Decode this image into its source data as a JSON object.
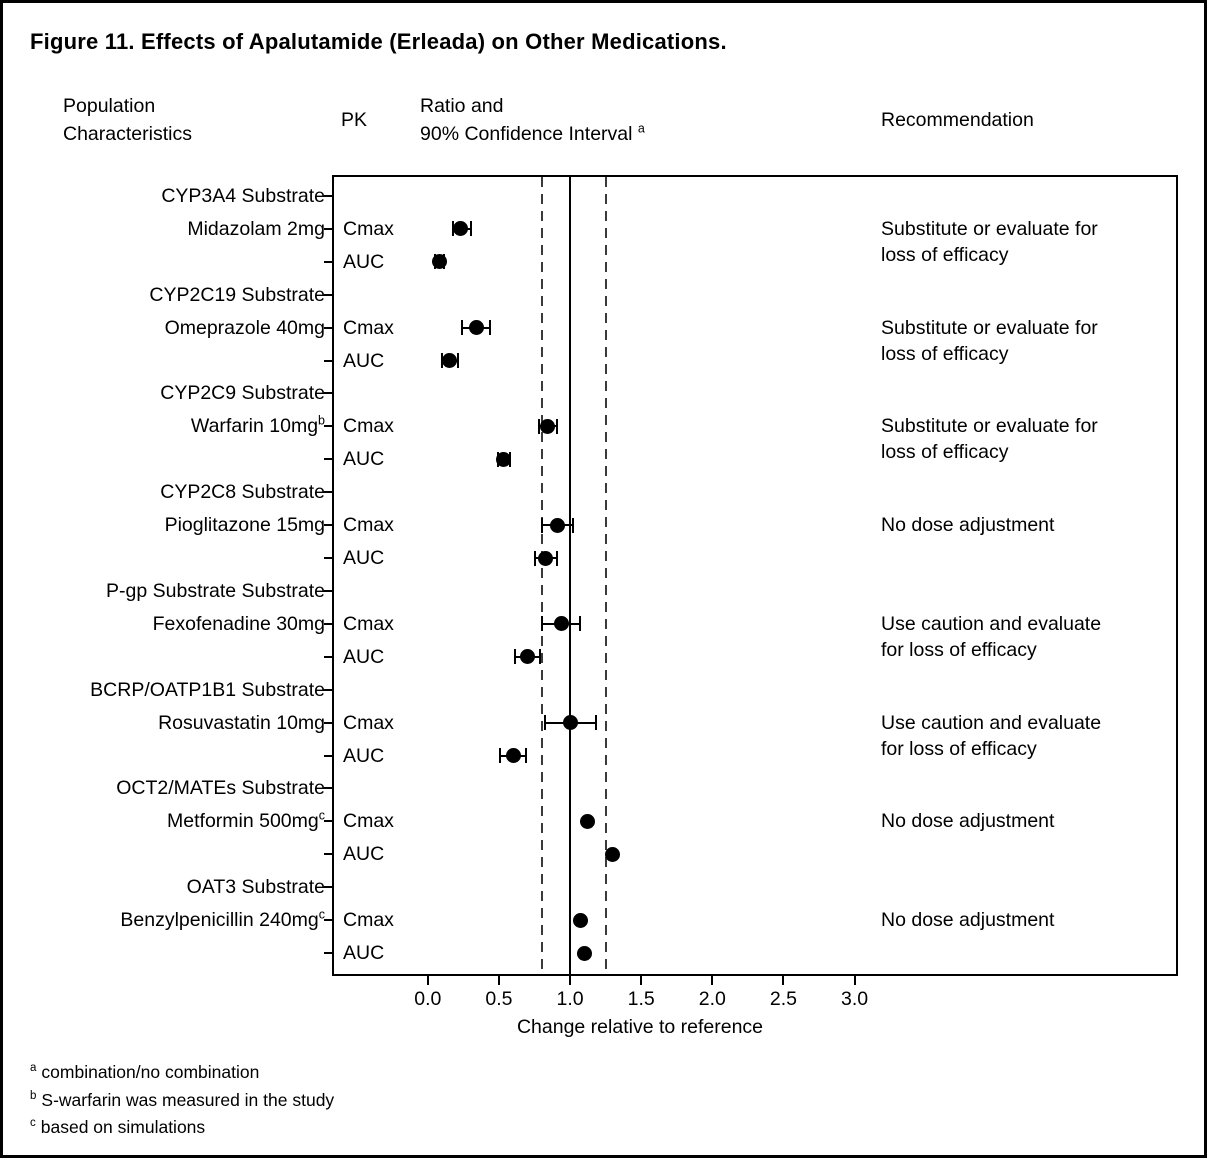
{
  "figure": {
    "columns": {
      "population_line1": "Population",
      "population_line2": "Characteristics",
      "pk": "PK",
      "ratio_line1": "Ratio and",
      "ratio_line2": "90% Confidence Interval",
      "ratio_sup": "a",
      "recommendation": "Recommendation"
    },
    "footnotes": [
      {
        "marker": "a",
        "text": "combination/no combination"
      },
      {
        "marker": "b",
        "text": "S-warfarin was measured in the study"
      },
      {
        "marker": "c",
        "text": "based on simulations"
      }
    ]
  },
  "colors": {
    "ink": "#000000",
    "dashed_reference": "#3a3a3a",
    "background": "#ffffff"
  },
  "chart_data": {
    "type": "scatter",
    "subtype": "forest-plot",
    "title": "Figure 11. Effects of Apalutamide (Erleada) on Other Medications.",
    "xlabel": "Change relative to reference",
    "x_ticks": [
      0.0,
      0.5,
      1.0,
      1.5,
      2.0,
      2.5,
      3.0
    ],
    "xlim": [
      -0.66,
      5.26
    ],
    "grid": false,
    "ref_lines": [
      {
        "x": 1.0,
        "style": "solid"
      },
      {
        "x": 0.8,
        "style": "dashed"
      },
      {
        "x": 1.25,
        "style": "dashed"
      }
    ],
    "rows": [
      {
        "kind": "category",
        "label": "CYP3A4 Substrate"
      },
      {
        "kind": "data",
        "label": "Midazolam 2mg",
        "pk": "Cmax",
        "value": 0.23,
        "lo": 0.18,
        "hi": 0.3,
        "rec_lines": [
          "Substitute or evaluate for",
          "loss of efficacy"
        ]
      },
      {
        "kind": "data",
        "label": "",
        "pk": "AUC",
        "value": 0.08,
        "lo": 0.05,
        "hi": 0.11
      },
      {
        "kind": "category",
        "label": "CYP2C19 Substrate"
      },
      {
        "kind": "data",
        "label": "Omeprazole 40mg",
        "pk": "Cmax",
        "value": 0.34,
        "lo": 0.24,
        "hi": 0.44,
        "rec_lines": [
          "Substitute or evaluate for",
          "loss of efficacy"
        ]
      },
      {
        "kind": "data",
        "label": "",
        "pk": "AUC",
        "value": 0.15,
        "lo": 0.1,
        "hi": 0.21
      },
      {
        "kind": "category",
        "label": "CYP2C9 Substrate"
      },
      {
        "kind": "data",
        "label": "Warfarin 10mg",
        "label_sup": "b",
        "pk": "Cmax",
        "value": 0.84,
        "lo": 0.78,
        "hi": 0.91,
        "rec_lines": [
          "Substitute or evaluate for",
          "loss of efficacy"
        ]
      },
      {
        "kind": "data",
        "label": "",
        "pk": "AUC",
        "value": 0.53,
        "lo": 0.49,
        "hi": 0.58
      },
      {
        "kind": "category",
        "label": "CYP2C8 Substrate"
      },
      {
        "kind": "data",
        "label": "Pioglitazone 15mg",
        "pk": "Cmax",
        "value": 0.91,
        "lo": 0.8,
        "hi": 1.02,
        "rec_lines": [
          "No dose adjustment"
        ]
      },
      {
        "kind": "data",
        "label": "",
        "pk": "AUC",
        "value": 0.83,
        "lo": 0.75,
        "hi": 0.91
      },
      {
        "kind": "category",
        "label": "P-gp Substrate Substrate"
      },
      {
        "kind": "data",
        "label": "Fexofenadine 30mg",
        "pk": "Cmax",
        "value": 0.94,
        "lo": 0.8,
        "hi": 1.07,
        "rec_lines": [
          "Use caution and evaluate",
          "for loss of efficacy"
        ]
      },
      {
        "kind": "data",
        "label": "",
        "pk": "AUC",
        "value": 0.7,
        "lo": 0.61,
        "hi": 0.79
      },
      {
        "kind": "category",
        "label": "BCRP/OATP1B1 Substrate"
      },
      {
        "kind": "data",
        "label": "Rosuvastatin 10mg",
        "pk": "Cmax",
        "value": 1.0,
        "lo": 0.82,
        "hi": 1.18,
        "rec_lines": [
          "Use caution and evaluate",
          "for loss of efficacy"
        ]
      },
      {
        "kind": "data",
        "label": "",
        "pk": "AUC",
        "value": 0.6,
        "lo": 0.51,
        "hi": 0.69
      },
      {
        "kind": "category",
        "label": "OCT2/MATEs Substrate"
      },
      {
        "kind": "data",
        "label": "Metformin 500mg",
        "label_sup": "c",
        "pk": "Cmax",
        "value": 1.12,
        "lo": null,
        "hi": null,
        "rec_lines": [
          "No dose adjustment"
        ]
      },
      {
        "kind": "data",
        "label": "",
        "pk": "AUC",
        "value": 1.3,
        "lo": null,
        "hi": null
      },
      {
        "kind": "category",
        "label": "OAT3 Substrate"
      },
      {
        "kind": "data",
        "label": "Benzylpenicillin 240mg",
        "label_sup": "c",
        "pk": "Cmax",
        "value": 1.07,
        "lo": null,
        "hi": null,
        "rec_lines": [
          "No dose adjustment"
        ]
      },
      {
        "kind": "data",
        "label": "",
        "pk": "AUC",
        "value": 1.1,
        "lo": null,
        "hi": null
      }
    ]
  }
}
